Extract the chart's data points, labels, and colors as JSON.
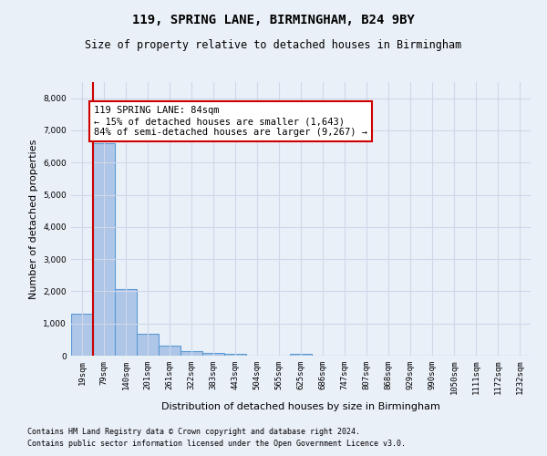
{
  "title1": "119, SPRING LANE, BIRMINGHAM, B24 9BY",
  "title2": "Size of property relative to detached houses in Birmingham",
  "xlabel": "Distribution of detached houses by size in Birmingham",
  "ylabel": "Number of detached properties",
  "footnote1": "Contains HM Land Registry data © Crown copyright and database right 2024.",
  "footnote2": "Contains public sector information licensed under the Open Government Licence v3.0.",
  "bar_labels": [
    "19sqm",
    "79sqm",
    "140sqm",
    "201sqm",
    "261sqm",
    "322sqm",
    "383sqm",
    "443sqm",
    "504sqm",
    "565sqm",
    "625sqm",
    "686sqm",
    "747sqm",
    "807sqm",
    "868sqm",
    "929sqm",
    "990sqm",
    "1050sqm",
    "1111sqm",
    "1172sqm",
    "1232sqm"
  ],
  "bar_values": [
    1300,
    6600,
    2080,
    690,
    300,
    130,
    80,
    60,
    0,
    0,
    60,
    0,
    0,
    0,
    0,
    0,
    0,
    0,
    0,
    0,
    0
  ],
  "bar_color": "#aec6e8",
  "bar_edge_color": "#5b9bd5",
  "red_line_x": 0.5,
  "property_line_label": "119 SPRING LANE: 84sqm",
  "annotation_line1": "← 15% of detached houses are smaller (1,643)",
  "annotation_line2": "84% of semi-detached houses are larger (9,267) →",
  "annotation_box_color": "#ffffff",
  "annotation_border_color": "#cc0000",
  "ylim": [
    0,
    8500
  ],
  "yticks": [
    0,
    1000,
    2000,
    3000,
    4000,
    5000,
    6000,
    7000,
    8000
  ],
  "grid_color": "#d0d8e8",
  "bg_color": "#eaf0f8",
  "plot_bg_color": "#eaf0f8",
  "red_line_color": "#cc0000",
  "title1_fontsize": 10,
  "title2_fontsize": 8.5,
  "ylabel_fontsize": 8,
  "xlabel_fontsize": 8,
  "tick_fontsize": 6.5,
  "footnote_fontsize": 6
}
